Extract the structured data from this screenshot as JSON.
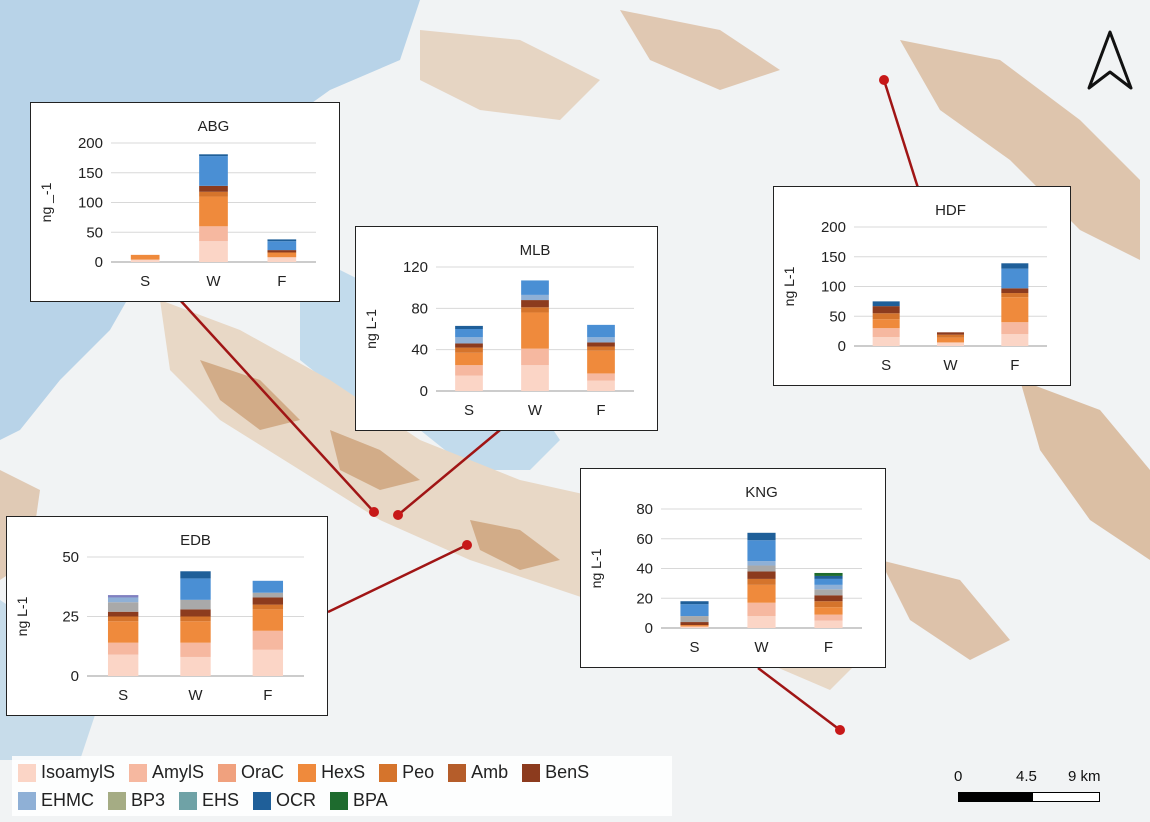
{
  "legend": {
    "row1": [
      {
        "label": "IsoamylS",
        "color": "#fbd5c6"
      },
      {
        "label": "AmylS",
        "color": "#f6b8a0"
      },
      {
        "label": "OraC",
        "color": "#f0a17e"
      },
      {
        "label": "HexS",
        "color": "#ef8a3c"
      },
      {
        "label": "Peo",
        "color": "#d5742c"
      },
      {
        "label": "Amb",
        "color": "#b55d2a"
      },
      {
        "label": "BenS",
        "color": "#8c3b1e"
      }
    ],
    "row2": [
      {
        "label": "EHMC",
        "color": "#8fb0d6"
      },
      {
        "label": "BP3",
        "color": "#a5ac84"
      },
      {
        "label": "EHS",
        "color": "#6fa2a6"
      },
      {
        "label": "OCR",
        "color": "#1f5f99"
      },
      {
        "label": "BPA",
        "color": "#1e6b2e"
      }
    ]
  },
  "scale": {
    "labels": [
      "0",
      "4.5",
      "9 km"
    ]
  },
  "chart_data": [
    {
      "type": "bar",
      "stacked": true,
      "title": "ABG",
      "categories": [
        "S",
        "W",
        "F"
      ],
      "ylabel": "ng _-1",
      "ylim": [
        0,
        200
      ],
      "yticks": [
        "0",
        "50",
        "100",
        "150",
        "200"
      ],
      "stacks": [
        [
          {
            "c": "#fbd5c6",
            "v": 4
          },
          {
            "c": "#ef8a3c",
            "v": 8
          }
        ],
        [
          {
            "c": "#fbd5c6",
            "v": 35
          },
          {
            "c": "#f6b8a0",
            "v": 25
          },
          {
            "c": "#ef8a3c",
            "v": 50
          },
          {
            "c": "#d5742c",
            "v": 8
          },
          {
            "c": "#8c3b1e",
            "v": 10
          },
          {
            "c": "#4a8fd4",
            "v": 50
          },
          {
            "c": "#1f5f99",
            "v": 3
          }
        ],
        [
          {
            "c": "#fbd5c6",
            "v": 8
          },
          {
            "c": "#ef8a3c",
            "v": 8
          },
          {
            "c": "#8c3b1e",
            "v": 4
          },
          {
            "c": "#4a8fd4",
            "v": 15
          },
          {
            "c": "#1f5f99",
            "v": 3
          }
        ]
      ]
    },
    {
      "type": "bar",
      "stacked": true,
      "title": "MLB",
      "categories": [
        "S",
        "W",
        "F"
      ],
      "ylabel": "ng L-1",
      "ylim": [
        0,
        120
      ],
      "yticks": [
        "0",
        "40",
        "80",
        "120"
      ],
      "stacks": [
        [
          {
            "c": "#fbd5c6",
            "v": 15
          },
          {
            "c": "#f6b8a0",
            "v": 10
          },
          {
            "c": "#ef8a3c",
            "v": 12
          },
          {
            "c": "#d5742c",
            "v": 5
          },
          {
            "c": "#8c3b1e",
            "v": 4
          },
          {
            "c": "#8fb0d6",
            "v": 6
          },
          {
            "c": "#4a8fd4",
            "v": 8
          },
          {
            "c": "#1f5f99",
            "v": 3
          }
        ],
        [
          {
            "c": "#fbd5c6",
            "v": 25
          },
          {
            "c": "#f6b8a0",
            "v": 16
          },
          {
            "c": "#ef8a3c",
            "v": 35
          },
          {
            "c": "#d5742c",
            "v": 5
          },
          {
            "c": "#8c3b1e",
            "v": 7
          },
          {
            "c": "#8fb0d6",
            "v": 5
          },
          {
            "c": "#4a8fd4",
            "v": 14
          }
        ],
        [
          {
            "c": "#fbd5c6",
            "v": 10
          },
          {
            "c": "#f6b8a0",
            "v": 7
          },
          {
            "c": "#ef8a3c",
            "v": 22
          },
          {
            "c": "#d5742c",
            "v": 4
          },
          {
            "c": "#8c3b1e",
            "v": 4
          },
          {
            "c": "#8fb0d6",
            "v": 5
          },
          {
            "c": "#4a8fd4",
            "v": 12
          }
        ]
      ]
    },
    {
      "type": "bar",
      "stacked": true,
      "title": "HDF",
      "categories": [
        "S",
        "W",
        "F"
      ],
      "ylabel": "ng L-1",
      "ylim": [
        0,
        200
      ],
      "yticks": [
        "0",
        "50",
        "100",
        "150",
        "200"
      ],
      "stacks": [
        [
          {
            "c": "#fbd5c6",
            "v": 15
          },
          {
            "c": "#f6b8a0",
            "v": 15
          },
          {
            "c": "#ef8a3c",
            "v": 15
          },
          {
            "c": "#d5742c",
            "v": 10
          },
          {
            "c": "#8c3b1e",
            "v": 12
          },
          {
            "c": "#1f5f99",
            "v": 8
          }
        ],
        [
          {
            "c": "#fbd5c6",
            "v": 6
          },
          {
            "c": "#ef8a3c",
            "v": 8
          },
          {
            "c": "#d5742c",
            "v": 5
          },
          {
            "c": "#8c3b1e",
            "v": 4
          }
        ],
        [
          {
            "c": "#fbd5c6",
            "v": 20
          },
          {
            "c": "#f6b8a0",
            "v": 20
          },
          {
            "c": "#ef8a3c",
            "v": 42
          },
          {
            "c": "#d5742c",
            "v": 7
          },
          {
            "c": "#8c3b1e",
            "v": 8
          },
          {
            "c": "#4a8fd4",
            "v": 33
          },
          {
            "c": "#1f5f99",
            "v": 9
          }
        ]
      ]
    },
    {
      "type": "bar",
      "stacked": true,
      "title": "EDB",
      "categories": [
        "S",
        "W",
        "F"
      ],
      "ylabel": "ng L-1",
      "ylim": [
        0,
        50
      ],
      "yticks": [
        "0",
        "25",
        "50"
      ],
      "stacks": [
        [
          {
            "c": "#fbd5c6",
            "v": 9
          },
          {
            "c": "#f6b8a0",
            "v": 5
          },
          {
            "c": "#ef8a3c",
            "v": 9
          },
          {
            "c": "#d5742c",
            "v": 2
          },
          {
            "c": "#8c3b1e",
            "v": 2
          },
          {
            "c": "#a9a9a9",
            "v": 4
          },
          {
            "c": "#8fb0d6",
            "v": 2
          },
          {
            "c": "#8080c0",
            "v": 1
          }
        ],
        [
          {
            "c": "#fbd5c6",
            "v": 8
          },
          {
            "c": "#f6b8a0",
            "v": 6
          },
          {
            "c": "#ef8a3c",
            "v": 9
          },
          {
            "c": "#d5742c",
            "v": 2
          },
          {
            "c": "#8c3b1e",
            "v": 3
          },
          {
            "c": "#a9a9a9",
            "v": 4
          },
          {
            "c": "#4a8fd4",
            "v": 9
          },
          {
            "c": "#1f5f99",
            "v": 3
          }
        ],
        [
          {
            "c": "#fbd5c6",
            "v": 11
          },
          {
            "c": "#f6b8a0",
            "v": 8
          },
          {
            "c": "#ef8a3c",
            "v": 9
          },
          {
            "c": "#d5742c",
            "v": 2
          },
          {
            "c": "#8c3b1e",
            "v": 3
          },
          {
            "c": "#a9a9a9",
            "v": 2
          },
          {
            "c": "#4a8fd4",
            "v": 5
          }
        ]
      ]
    },
    {
      "type": "bar",
      "stacked": true,
      "title": "KNG",
      "categories": [
        "S",
        "W",
        "F"
      ],
      "ylabel": "ng L-1",
      "ylim": [
        0,
        80
      ],
      "yticks": [
        "0",
        "20",
        "40",
        "60",
        "80"
      ],
      "stacks": [
        [
          {
            "c": "#fbd5c6",
            "v": 1
          },
          {
            "c": "#ef8a3c",
            "v": 1
          },
          {
            "c": "#8c3b1e",
            "v": 2
          },
          {
            "c": "#a9a9a9",
            "v": 4
          },
          {
            "c": "#4a8fd4",
            "v": 8
          },
          {
            "c": "#1f5f99",
            "v": 2
          }
        ],
        [
          {
            "c": "#fbd5c6",
            "v": 8
          },
          {
            "c": "#f6b8a0",
            "v": 9
          },
          {
            "c": "#ef8a3c",
            "v": 12
          },
          {
            "c": "#d5742c",
            "v": 4
          },
          {
            "c": "#8c3b1e",
            "v": 5
          },
          {
            "c": "#a9a9a9",
            "v": 4
          },
          {
            "c": "#8fb0d6",
            "v": 3
          },
          {
            "c": "#4a8fd4",
            "v": 14
          },
          {
            "c": "#1f5f99",
            "v": 5
          }
        ],
        [
          {
            "c": "#fbd5c6",
            "v": 5
          },
          {
            "c": "#f6b8a0",
            "v": 4
          },
          {
            "c": "#ef8a3c",
            "v": 5
          },
          {
            "c": "#d5742c",
            "v": 4
          },
          {
            "c": "#8c3b1e",
            "v": 4
          },
          {
            "c": "#a9a9a9",
            "v": 4
          },
          {
            "c": "#8fb0d6",
            "v": 3
          },
          {
            "c": "#4a8fd4",
            "v": 4
          },
          {
            "c": "#1f5f99",
            "v": 2
          },
          {
            "c": "#1e6b2e",
            "v": 2
          }
        ]
      ]
    }
  ]
}
